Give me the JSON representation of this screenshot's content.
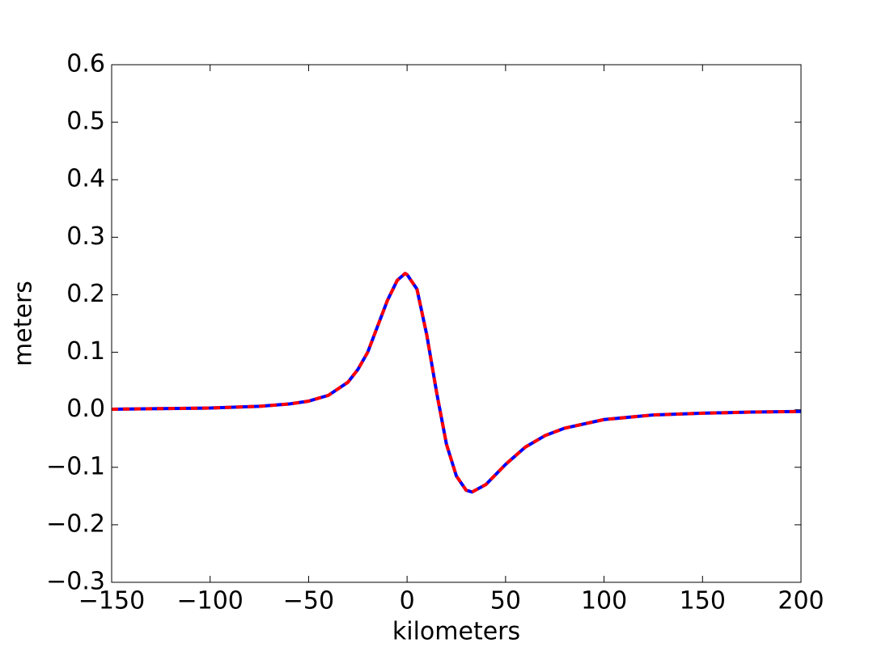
{
  "chart_data": {
    "type": "line",
    "xlabel": "kilometers",
    "ylabel": "meters",
    "x": [
      -150,
      -125,
      -100,
      -75,
      -60,
      -50,
      -40,
      -30,
      -25,
      -20,
      -15,
      -10,
      -5,
      -1,
      0,
      5,
      10,
      15,
      20,
      25,
      30,
      33,
      40,
      50,
      60,
      70,
      80,
      100,
      125,
      150,
      175,
      200
    ],
    "series": [
      {
        "color": "#0000ff",
        "style": "solid",
        "values": [
          0.001,
          0.002,
          0.003,
          0.006,
          0.01,
          0.015,
          0.025,
          0.048,
          0.07,
          0.1,
          0.145,
          0.19,
          0.225,
          0.237,
          0.235,
          0.21,
          0.13,
          0.03,
          -0.06,
          -0.115,
          -0.14,
          -0.143,
          -0.13,
          -0.095,
          -0.065,
          -0.045,
          -0.032,
          -0.017,
          -0.009,
          -0.006,
          -0.004,
          -0.003
        ]
      },
      {
        "color": "#ff0000",
        "style": "dashed",
        "values": [
          0.001,
          0.002,
          0.003,
          0.006,
          0.01,
          0.015,
          0.025,
          0.048,
          0.07,
          0.1,
          0.145,
          0.19,
          0.225,
          0.237,
          0.235,
          0.21,
          0.13,
          0.03,
          -0.06,
          -0.115,
          -0.14,
          -0.143,
          -0.13,
          -0.095,
          -0.065,
          -0.045,
          -0.032,
          -0.017,
          -0.009,
          -0.006,
          -0.004,
          -0.003
        ]
      }
    ],
    "xlim": [
      -150,
      200
    ],
    "xticks": [
      {
        "value": -150,
        "label": "−150"
      },
      {
        "value": -100,
        "label": "−100"
      },
      {
        "value": -50,
        "label": "−50"
      },
      0,
      50,
      100,
      150,
      200
    ],
    "ylim": [
      -0.3,
      0.6
    ],
    "yticks": [
      {
        "value": -0.3,
        "label": "−0.3"
      },
      {
        "value": -0.2,
        "label": "−0.2"
      },
      {
        "value": -0.1,
        "label": "−0.1"
      },
      {
        "value": 0,
        "label": "0.0"
      },
      0.1,
      0.2,
      0.3,
      0.4,
      0.5,
      0.6
    ],
    "grid": false
  }
}
